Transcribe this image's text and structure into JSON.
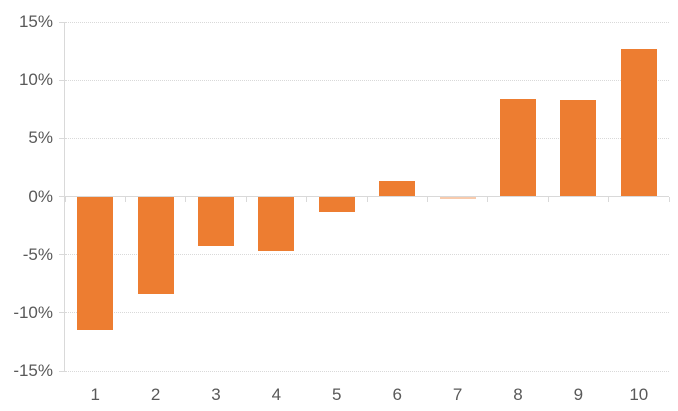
{
  "chart_data": {
    "type": "bar",
    "title": "",
    "categories": [
      "1",
      "2",
      "3",
      "4",
      "5",
      "6",
      "7",
      "8",
      "9",
      "10"
    ],
    "values": [
      -11.4,
      -8.3,
      -4.2,
      -4.6,
      -1.3,
      1.3,
      -0.1,
      8.4,
      8.3,
      12.7
    ],
    "xlabel": "",
    "ylabel": "",
    "ylim": [
      -15,
      15
    ],
    "ytick_values": [
      15,
      10,
      5,
      0,
      -5,
      -10,
      -15
    ],
    "ytick_labels": [
      "15%",
      "10%",
      "5%",
      "0%",
      "-5%",
      "-10%",
      "-15%"
    ],
    "grid": "horizontal-dotted",
    "legend": "none",
    "colors": {
      "bar": "#ED7D31",
      "gridline": "#D9D9D9",
      "axis_line": "#D9D9D9",
      "tick_label": "#595959",
      "background": "#FFFFFF"
    }
  }
}
